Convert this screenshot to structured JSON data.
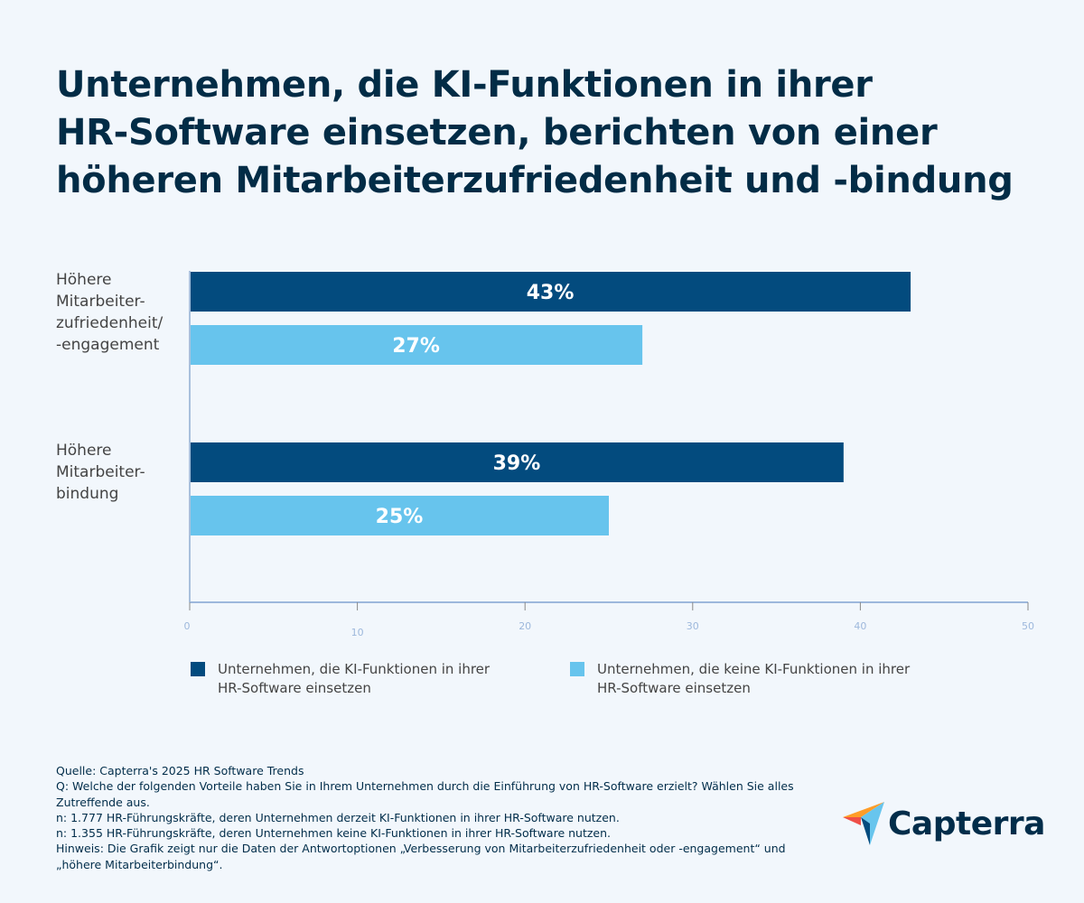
{
  "title": [
    "Unternehmen, die KI-Funktionen in ihrer",
    "HR-Software einsetzen, berichten von einer",
    "höheren Mitarbeiterzufriedenheit und -bindung"
  ],
  "chart_data": {
    "type": "bar",
    "orientation": "horizontal",
    "categories": [
      [
        "Höhere",
        "Mitarbeiter-",
        "zufriedenheit/",
        "-engagement"
      ],
      [
        "Höhere",
        "Mitarbeiter-",
        "bindung"
      ]
    ],
    "series": [
      {
        "name": "Unternehmen, die KI-Funktionen in ihrer HR-Software einsetzen",
        "values": [
          43,
          39
        ],
        "labels": [
          "43%",
          "39%"
        ],
        "color": "#034b7e"
      },
      {
        "name": "Unternehmen, die keine KI-Funktionen in ihrer HR-Software einsetzen",
        "values": [
          27,
          25
        ],
        "labels": [
          "27%",
          "25%"
        ],
        "color": "#67c4ed"
      }
    ],
    "xlim": [
      0,
      50
    ],
    "xticks": [
      "0",
      "10",
      "20",
      "30",
      "40",
      "50"
    ],
    "grid": false,
    "legend": "bottom"
  },
  "legend": [
    "Unternehmen, die KI-Funktionen in ihrer HR-Software einsetzen",
    "Unternehmen, die keine KI-Funktionen in ihrer HR-Software einsetzen"
  ],
  "footer": [
    "Quelle: Capterra's 2025 HR Software Trends",
    "Q: Welche der folgenden Vorteile haben Sie in Ihrem Unternehmen durch die Einführung von HR-Software erzielt? Wählen Sie alles Zutreffende aus.",
    "n: 1.777 HR-Führungskräfte, deren Unternehmen derzeit KI-Funktionen in ihrer HR-Software nutzen.",
    "n: 1.355 HR-Führungskräfte, deren Unternehmen keine KI-Funktionen in ihrer HR-Software nutzen.",
    "Hinweis: Die Grafik zeigt nur die Daten der Antwortoptionen „Verbesserung von Mitarbeiterzufriedenheit oder -engagement“ und „höhere Mitarbeiterbindung“."
  ],
  "logo": {
    "text": "Capterra"
  }
}
